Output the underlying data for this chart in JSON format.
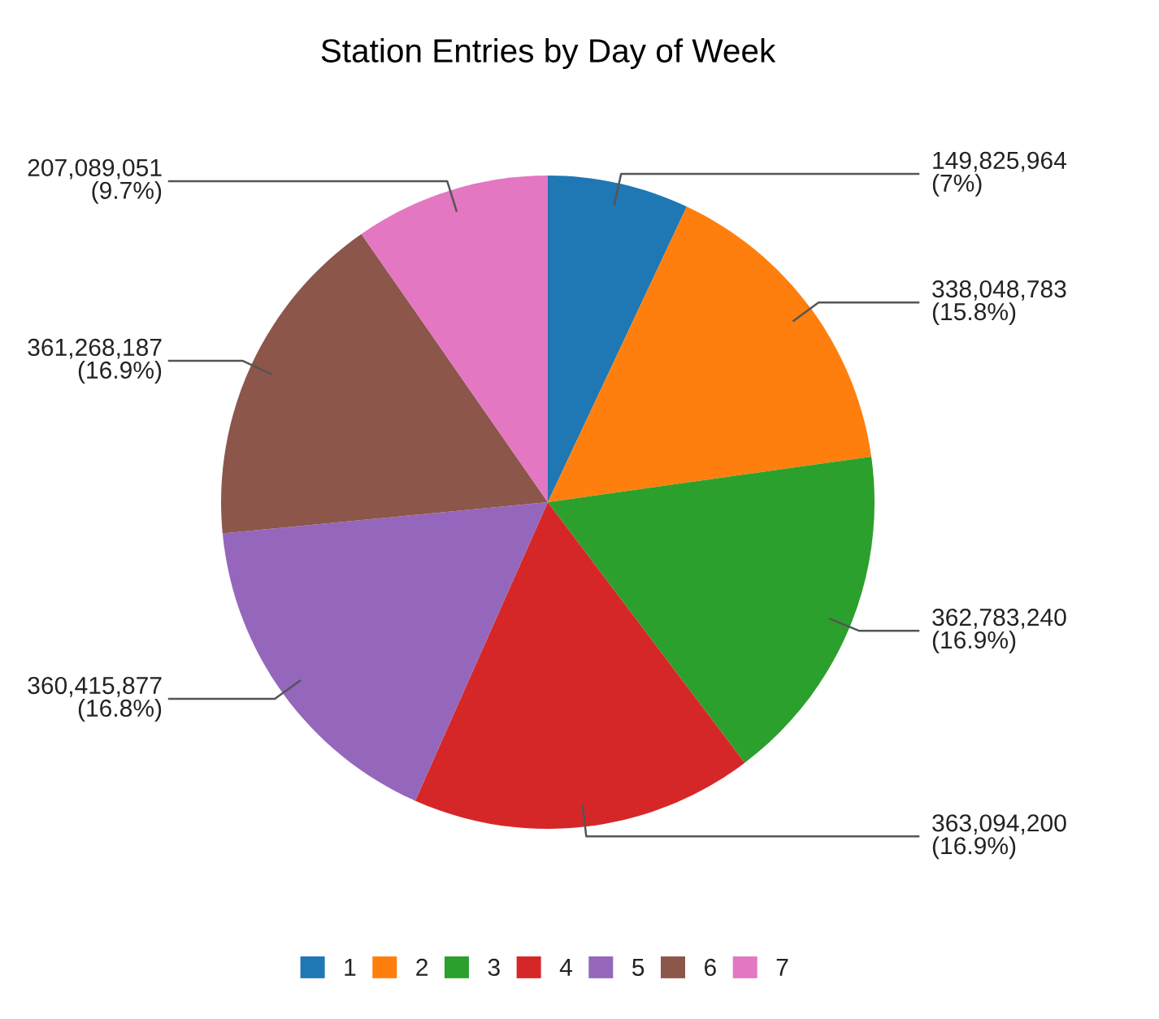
{
  "chart_data": {
    "type": "pie",
    "title": "Station Entries by Day of Week",
    "categories": [
      "1",
      "2",
      "3",
      "4",
      "5",
      "6",
      "7"
    ],
    "values": [
      149825964,
      338048783,
      362783240,
      363094200,
      360415877,
      361268187,
      207089051
    ],
    "colors": [
      "#1f77b4",
      "#ff7f0e",
      "#2ca02c",
      "#d62728",
      "#9467bd",
      "#8c564b",
      "#e377c2"
    ],
    "value_labels": [
      "149,825,964\n(7%)",
      "338,048,783\n(15.8%)",
      "362,783,240\n(16.9%)",
      "363,094,200\n(16.9%)",
      "360,415,877\n(16.8%)",
      "361,268,187\n(16.9%)",
      "207,089,051\n(9.7%)"
    ],
    "legend": "bottom"
  }
}
